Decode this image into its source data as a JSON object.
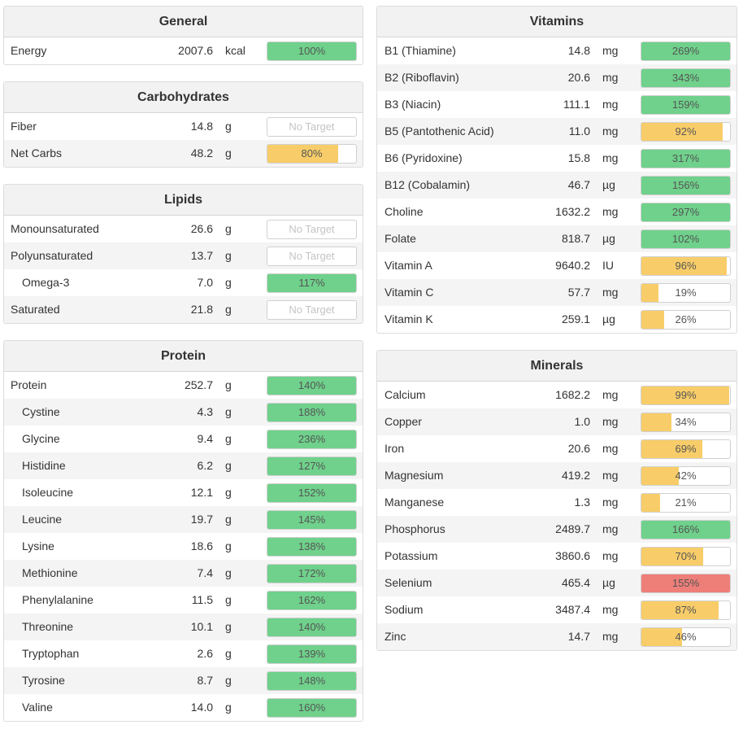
{
  "colors": {
    "green": "#6fd18b",
    "yellow": "#f8cd69",
    "red": "#ee7e78"
  },
  "left": [
    {
      "title": "General",
      "rows": [
        {
          "name": "Energy",
          "value": "2007.6",
          "unit": "kcal",
          "pct": "100%",
          "fill": 100,
          "color": "green",
          "indent": false
        }
      ]
    },
    {
      "title": "Carbohydrates",
      "rows": [
        {
          "name": "Fiber",
          "value": "14.8",
          "unit": "g",
          "pct": "No Target",
          "fill": 0,
          "color": "none",
          "indent": false
        },
        {
          "name": "Net Carbs",
          "value": "48.2",
          "unit": "g",
          "pct": "80%",
          "fill": 80,
          "color": "yellow",
          "indent": false
        }
      ]
    },
    {
      "title": "Lipids",
      "rows": [
        {
          "name": "Monounsaturated",
          "value": "26.6",
          "unit": "g",
          "pct": "No Target",
          "fill": 0,
          "color": "none",
          "indent": false
        },
        {
          "name": "Polyunsaturated",
          "value": "13.7",
          "unit": "g",
          "pct": "No Target",
          "fill": 0,
          "color": "none",
          "indent": false
        },
        {
          "name": "Omega-3",
          "value": "7.0",
          "unit": "g",
          "pct": "117%",
          "fill": 100,
          "color": "green",
          "indent": true
        },
        {
          "name": "Saturated",
          "value": "21.8",
          "unit": "g",
          "pct": "No Target",
          "fill": 0,
          "color": "none",
          "indent": false
        }
      ]
    },
    {
      "title": "Protein",
      "rows": [
        {
          "name": "Protein",
          "value": "252.7",
          "unit": "g",
          "pct": "140%",
          "fill": 100,
          "color": "green",
          "indent": false
        },
        {
          "name": "Cystine",
          "value": "4.3",
          "unit": "g",
          "pct": "188%",
          "fill": 100,
          "color": "green",
          "indent": true
        },
        {
          "name": "Glycine",
          "value": "9.4",
          "unit": "g",
          "pct": "236%",
          "fill": 100,
          "color": "green",
          "indent": true
        },
        {
          "name": "Histidine",
          "value": "6.2",
          "unit": "g",
          "pct": "127%",
          "fill": 100,
          "color": "green",
          "indent": true
        },
        {
          "name": "Isoleucine",
          "value": "12.1",
          "unit": "g",
          "pct": "152%",
          "fill": 100,
          "color": "green",
          "indent": true
        },
        {
          "name": "Leucine",
          "value": "19.7",
          "unit": "g",
          "pct": "145%",
          "fill": 100,
          "color": "green",
          "indent": true
        },
        {
          "name": "Lysine",
          "value": "18.6",
          "unit": "g",
          "pct": "138%",
          "fill": 100,
          "color": "green",
          "indent": true
        },
        {
          "name": "Methionine",
          "value": "7.4",
          "unit": "g",
          "pct": "172%",
          "fill": 100,
          "color": "green",
          "indent": true
        },
        {
          "name": "Phenylalanine",
          "value": "11.5",
          "unit": "g",
          "pct": "162%",
          "fill": 100,
          "color": "green",
          "indent": true
        },
        {
          "name": "Threonine",
          "value": "10.1",
          "unit": "g",
          "pct": "140%",
          "fill": 100,
          "color": "green",
          "indent": true
        },
        {
          "name": "Tryptophan",
          "value": "2.6",
          "unit": "g",
          "pct": "139%",
          "fill": 100,
          "color": "green",
          "indent": true
        },
        {
          "name": "Tyrosine",
          "value": "8.7",
          "unit": "g",
          "pct": "148%",
          "fill": 100,
          "color": "green",
          "indent": true
        },
        {
          "name": "Valine",
          "value": "14.0",
          "unit": "g",
          "pct": "160%",
          "fill": 100,
          "color": "green",
          "indent": true
        }
      ]
    }
  ],
  "right": [
    {
      "title": "Vitamins",
      "rows": [
        {
          "name": "B1 (Thiamine)",
          "value": "14.8",
          "unit": "mg",
          "pct": "269%",
          "fill": 100,
          "color": "green",
          "indent": false
        },
        {
          "name": "B2 (Riboflavin)",
          "value": "20.6",
          "unit": "mg",
          "pct": "343%",
          "fill": 100,
          "color": "green",
          "indent": false
        },
        {
          "name": "B3 (Niacin)",
          "value": "111.1",
          "unit": "mg",
          "pct": "159%",
          "fill": 100,
          "color": "green",
          "indent": false
        },
        {
          "name": "B5 (Pantothenic Acid)",
          "value": "11.0",
          "unit": "mg",
          "pct": "92%",
          "fill": 92,
          "color": "yellow",
          "indent": false
        },
        {
          "name": "B6 (Pyridoxine)",
          "value": "15.8",
          "unit": "mg",
          "pct": "317%",
          "fill": 100,
          "color": "green",
          "indent": false
        },
        {
          "name": "B12 (Cobalamin)",
          "value": "46.7",
          "unit": "µg",
          "pct": "156%",
          "fill": 100,
          "color": "green",
          "indent": false
        },
        {
          "name": "Choline",
          "value": "1632.2",
          "unit": "mg",
          "pct": "297%",
          "fill": 100,
          "color": "green",
          "indent": false
        },
        {
          "name": "Folate",
          "value": "818.7",
          "unit": "µg",
          "pct": "102%",
          "fill": 100,
          "color": "green",
          "indent": false
        },
        {
          "name": "Vitamin A",
          "value": "9640.2",
          "unit": "IU",
          "pct": "96%",
          "fill": 96,
          "color": "yellow",
          "indent": false
        },
        {
          "name": "Vitamin C",
          "value": "57.7",
          "unit": "mg",
          "pct": "19%",
          "fill": 19,
          "color": "yellow",
          "indent": false
        },
        {
          "name": "Vitamin K",
          "value": "259.1",
          "unit": "µg",
          "pct": "26%",
          "fill": 26,
          "color": "yellow",
          "indent": false
        }
      ]
    },
    {
      "title": "Minerals",
      "rows": [
        {
          "name": "Calcium",
          "value": "1682.2",
          "unit": "mg",
          "pct": "99%",
          "fill": 99,
          "color": "yellow",
          "indent": false
        },
        {
          "name": "Copper",
          "value": "1.0",
          "unit": "mg",
          "pct": "34%",
          "fill": 34,
          "color": "yellow",
          "indent": false
        },
        {
          "name": "Iron",
          "value": "20.6",
          "unit": "mg",
          "pct": "69%",
          "fill": 69,
          "color": "yellow",
          "indent": false
        },
        {
          "name": "Magnesium",
          "value": "419.2",
          "unit": "mg",
          "pct": "42%",
          "fill": 42,
          "color": "yellow",
          "indent": false
        },
        {
          "name": "Manganese",
          "value": "1.3",
          "unit": "mg",
          "pct": "21%",
          "fill": 21,
          "color": "yellow",
          "indent": false
        },
        {
          "name": "Phosphorus",
          "value": "2489.7",
          "unit": "mg",
          "pct": "166%",
          "fill": 100,
          "color": "green",
          "indent": false
        },
        {
          "name": "Potassium",
          "value": "3860.6",
          "unit": "mg",
          "pct": "70%",
          "fill": 70,
          "color": "yellow",
          "indent": false
        },
        {
          "name": "Selenium",
          "value": "465.4",
          "unit": "µg",
          "pct": "155%",
          "fill": 100,
          "color": "red",
          "indent": false
        },
        {
          "name": "Sodium",
          "value": "3487.4",
          "unit": "mg",
          "pct": "87%",
          "fill": 87,
          "color": "yellow",
          "indent": false
        },
        {
          "name": "Zinc",
          "value": "14.7",
          "unit": "mg",
          "pct": "46%",
          "fill": 46,
          "color": "yellow",
          "indent": false
        }
      ]
    }
  ]
}
